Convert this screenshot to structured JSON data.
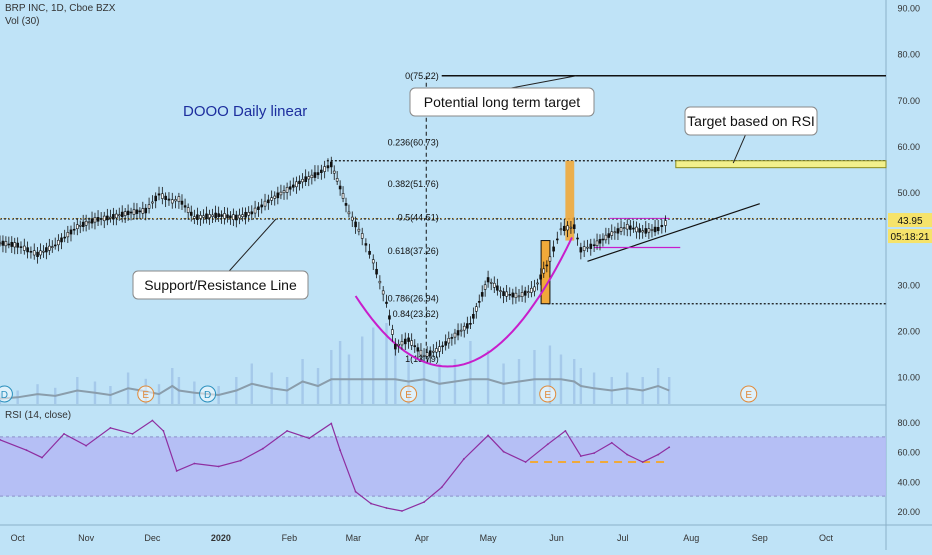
{
  "header": {
    "symbol_line": "BRP INC, 1D, Cboe BZX",
    "vol_label": "Vol (30)",
    "rsi_label": "RSI (14, close)"
  },
  "colors": {
    "background": "#bfe3f7",
    "candle_up": "#111111",
    "candle_down": "#111111",
    "cup_curve": "#c81ecb",
    "rsi_line": "#8e2ea0",
    "rsi_band": "#b3b8f5",
    "price_tag": "#f6e36a",
    "countdown_tag": "#f6e36a",
    "orange_box": "#f0a93a",
    "yellow_box": "#f3f08c",
    "volume_bar": "#9cc0e6",
    "volume_ma": "#8a9dab"
  },
  "chart_data": {
    "type": "candlestick",
    "title": "DOOO Daily linear",
    "x_tick_labels": [
      "Oct",
      "Nov",
      "Dec",
      "2020",
      "Feb",
      "Mar",
      "Apr",
      "May",
      "Jun",
      "Jul",
      "Aug",
      "Sep",
      "Oct"
    ],
    "y_tick_labels": [
      "90.00",
      "80.00",
      "70.00",
      "60.00",
      "50.00",
      "40.00",
      "30.00",
      "20.00",
      "10.00"
    ],
    "y_ticks": [
      90,
      80,
      70,
      60,
      50,
      40,
      30,
      20,
      10
    ],
    "ylim": [
      4.5,
      91
    ],
    "last_price": 43.95,
    "last_price_label": "43.95",
    "countdown_label": "05:18:21",
    "price_series": [
      {
        "date": "2019-09-23",
        "close": 39.0
      },
      {
        "date": "2019-10-01",
        "close": 38.5
      },
      {
        "date": "2019-10-10",
        "close": 36.5
      },
      {
        "date": "2019-10-18",
        "close": 38.5
      },
      {
        "date": "2019-10-28",
        "close": 42.5
      },
      {
        "date": "2019-11-05",
        "close": 44.0
      },
      {
        "date": "2019-11-12",
        "close": 44.5
      },
      {
        "date": "2019-11-20",
        "close": 45.5
      },
      {
        "date": "2019-11-28",
        "close": 46.0
      },
      {
        "date": "2019-12-04",
        "close": 49.5
      },
      {
        "date": "2019-12-10",
        "close": 48.0
      },
      {
        "date": "2019-12-13",
        "close": 48.5
      },
      {
        "date": "2019-12-20",
        "close": 44.5
      },
      {
        "date": "2019-12-31",
        "close": 45.0
      },
      {
        "date": "2020-01-08",
        "close": 44.5
      },
      {
        "date": "2020-01-15",
        "close": 45.5
      },
      {
        "date": "2020-01-24",
        "close": 48.5
      },
      {
        "date": "2020-01-31",
        "close": 50.5
      },
      {
        "date": "2020-02-07",
        "close": 52.5
      },
      {
        "date": "2020-02-14",
        "close": 54.0
      },
      {
        "date": "2020-02-20",
        "close": 56.0
      },
      {
        "date": "2020-02-24",
        "close": 51.0
      },
      {
        "date": "2020-02-28",
        "close": 45.5
      },
      {
        "date": "2020-03-05",
        "close": 40.5
      },
      {
        "date": "2020-03-10",
        "close": 35.0
      },
      {
        "date": "2020-03-16",
        "close": 26.0
      },
      {
        "date": "2020-03-20",
        "close": 16.5
      },
      {
        "date": "2020-03-26",
        "close": 18.0
      },
      {
        "date": "2020-04-02",
        "close": 14.5
      },
      {
        "date": "2020-04-09",
        "close": 16.0
      },
      {
        "date": "2020-04-16",
        "close": 19.0
      },
      {
        "date": "2020-04-23",
        "close": 21.5
      },
      {
        "date": "2020-05-01",
        "close": 31.0
      },
      {
        "date": "2020-05-08",
        "close": 28.0
      },
      {
        "date": "2020-05-15",
        "close": 27.5
      },
      {
        "date": "2020-05-22",
        "close": 29.0
      },
      {
        "date": "2020-05-29",
        "close": 35.5
      },
      {
        "date": "2020-06-03",
        "close": 42.0
      },
      {
        "date": "2020-06-09",
        "close": 42.5
      },
      {
        "date": "2020-06-12",
        "close": 37.5
      },
      {
        "date": "2020-06-18",
        "close": 38.5
      },
      {
        "date": "2020-06-26",
        "close": 41.0
      },
      {
        "date": "2020-07-03",
        "close": 42.5
      },
      {
        "date": "2020-07-10",
        "close": 41.5
      },
      {
        "date": "2020-07-17",
        "close": 42.0
      },
      {
        "date": "2020-07-22",
        "close": 43.95
      }
    ],
    "fib_levels": [
      {
        "label": "0(75.22)",
        "value": 75.22
      },
      {
        "label": "0.236(60.73)",
        "value": 60.73
      },
      {
        "label": "0.382(51.76)",
        "value": 51.76
      },
      {
        "label": "0.5(44.51)",
        "value": 44.51
      },
      {
        "label": "0.618(37.26)",
        "value": 37.26
      },
      {
        "label": "0.786(26.94)",
        "value": 26.94
      },
      {
        "label": "0.84(23.62)",
        "value": 23.62
      },
      {
        "label": "1(13.79)",
        "value": 13.79
      }
    ],
    "horizontal_lines": [
      {
        "name": "top-dotted-resistance",
        "value": 56.8,
        "style": "dotted"
      },
      {
        "name": "support-resistance",
        "value": 44.2,
        "style": "dotted"
      },
      {
        "name": "lower-dotted-support",
        "value": 25.8,
        "style": "dotted"
      }
    ],
    "annotations": [
      {
        "name": "potential-target",
        "text": "Potential long term target"
      },
      {
        "name": "rsi-target",
        "text": "Target based on RSI"
      },
      {
        "name": "support-resistance-note",
        "text": "Support/Resistance Line"
      }
    ],
    "event_markers": [
      {
        "label": "D",
        "date": "2019-09-25",
        "kind": "dividend"
      },
      {
        "label": "E",
        "date": "2019-11-28",
        "kind": "earnings"
      },
      {
        "label": "D",
        "date": "2019-12-26",
        "kind": "dividend"
      },
      {
        "label": "E",
        "date": "2020-03-26",
        "kind": "earnings"
      },
      {
        "label": "E",
        "date": "2020-05-28",
        "kind": "earnings"
      },
      {
        "label": "E",
        "date": "2020-08-27",
        "kind": "earnings"
      }
    ],
    "volume": {
      "label": "Vol (30)",
      "max_relative": 1.0,
      "profile": [
        0.12,
        0.15,
        0.22,
        0.18,
        0.3,
        0.25,
        0.2,
        0.35,
        0.28,
        0.22,
        0.4,
        0.3,
        0.25,
        0.2,
        0.3,
        0.45,
        0.35,
        0.3,
        0.5,
        0.4,
        0.6,
        0.7,
        0.55,
        0.75,
        0.85,
        0.9,
        0.65,
        0.5,
        0.55,
        0.45,
        0.5,
        0.7,
        0.6,
        0.45,
        0.5,
        0.6,
        0.65,
        0.55,
        0.5,
        0.4,
        0.35,
        0.3,
        0.35,
        0.3,
        0.4,
        0.3
      ]
    },
    "rsi": {
      "title": "RSI (14, close)",
      "y_tick_labels": [
        "80.00",
        "60.00",
        "40.00",
        "20.00"
      ],
      "y_ticks": [
        80,
        60,
        40,
        20
      ],
      "ylim": [
        13,
        88
      ],
      "band": [
        30,
        70
      ],
      "values": [
        {
          "date": "2019-09-23",
          "value": 68
        },
        {
          "date": "2019-10-05",
          "value": 61
        },
        {
          "date": "2019-10-12",
          "value": 56
        },
        {
          "date": "2019-10-22",
          "value": 72
        },
        {
          "date": "2019-11-01",
          "value": 64
        },
        {
          "date": "2019-11-12",
          "value": 76
        },
        {
          "date": "2019-11-22",
          "value": 72
        },
        {
          "date": "2019-12-01",
          "value": 81
        },
        {
          "date": "2019-12-06",
          "value": 74
        },
        {
          "date": "2019-12-12",
          "value": 47
        },
        {
          "date": "2019-12-20",
          "value": 52
        },
        {
          "date": "2019-12-31",
          "value": 50
        },
        {
          "date": "2020-01-10",
          "value": 54
        },
        {
          "date": "2020-01-20",
          "value": 62
        },
        {
          "date": "2020-01-31",
          "value": 74
        },
        {
          "date": "2020-02-10",
          "value": 69
        },
        {
          "date": "2020-02-20",
          "value": 79
        },
        {
          "date": "2020-02-24",
          "value": 61
        },
        {
          "date": "2020-03-02",
          "value": 33
        },
        {
          "date": "2020-03-09",
          "value": 25
        },
        {
          "date": "2020-03-16",
          "value": 22
        },
        {
          "date": "2020-03-23",
          "value": 20
        },
        {
          "date": "2020-04-02",
          "value": 26
        },
        {
          "date": "2020-04-10",
          "value": 36
        },
        {
          "date": "2020-04-20",
          "value": 55
        },
        {
          "date": "2020-05-01",
          "value": 71
        },
        {
          "date": "2020-05-08",
          "value": 60
        },
        {
          "date": "2020-05-18",
          "value": 53
        },
        {
          "date": "2020-05-28",
          "value": 65
        },
        {
          "date": "2020-06-05",
          "value": 74
        },
        {
          "date": "2020-06-12",
          "value": 57
        },
        {
          "date": "2020-06-18",
          "value": 59
        },
        {
          "date": "2020-06-26",
          "value": 66
        },
        {
          "date": "2020-07-03",
          "value": 58
        },
        {
          "date": "2020-07-10",
          "value": 53
        },
        {
          "date": "2020-07-17",
          "value": 58
        },
        {
          "date": "2020-07-22",
          "value": 63
        }
      ]
    }
  }
}
